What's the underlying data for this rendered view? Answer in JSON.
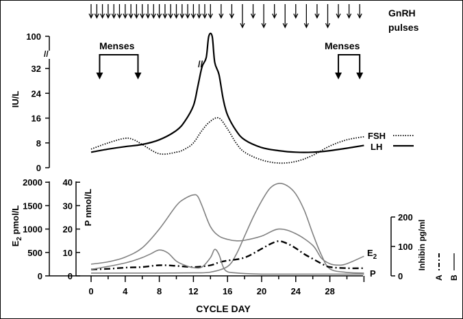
{
  "colors": {
    "ink": "#000000",
    "e2_line": "#808080",
    "p_line": "#808080",
    "inhibin_b": "#808080"
  },
  "chart_data": [
    {
      "type": "line",
      "title": "GnRH pulses",
      "gnrh_label_1": "GnRH",
      "gnrh_label_2": "pulses",
      "gnrh_pulse_days": [
        0,
        0.67,
        1.33,
        2,
        2.67,
        3.33,
        4,
        4.67,
        5.33,
        6,
        6.67,
        7.33,
        8,
        8.67,
        9.33,
        10,
        10.67,
        11.33,
        12,
        12.67,
        13.33,
        14,
        15.25,
        16.5,
        17.75,
        19,
        20.25,
        21.5,
        22.75,
        24,
        25.25,
        26.5,
        27.75,
        29,
        30.25,
        31.5
      ],
      "gnrh_long_days": [
        17.75,
        20.25,
        22.75,
        25.25,
        27.75
      ],
      "xlim": [
        0,
        32
      ],
      "ylabel": "IU/L",
      "ytick_labels": [
        "0",
        "8",
        "16",
        "24",
        "32",
        "100"
      ],
      "y_break": "//",
      "menses_label": "Menses",
      "menses_1": [
        1,
        5.5
      ],
      "menses_2": [
        29,
        31.5
      ],
      "series": [
        {
          "name": "LH",
          "label": "LH",
          "style": "solid",
          "x": [
            0,
            2,
            4,
            6,
            8,
            10,
            11,
            12,
            12.5,
            13,
            13.5,
            13.8,
            14.2,
            14.5,
            15,
            15.5,
            16,
            17,
            18,
            20,
            22,
            24,
            26,
            28,
            30,
            32
          ],
          "y": [
            5,
            6,
            6.8,
            7.5,
            9,
            12,
            15,
            20,
            26,
            35,
            55,
            100,
            100,
            45,
            30,
            22,
            17,
            12,
            9,
            6.5,
            5.5,
            5,
            5,
            5.5,
            6.3,
            7.2
          ]
        },
        {
          "name": "FSH",
          "label": "FSH",
          "style": "dotted",
          "x": [
            0,
            2,
            4,
            5,
            6,
            8,
            10,
            11,
            12,
            13,
            14,
            15,
            16,
            17,
            18,
            20,
            22,
            24,
            26,
            28,
            30,
            32
          ],
          "y": [
            6,
            8,
            9.5,
            9,
            7.5,
            4.5,
            5,
            6,
            8,
            12,
            15,
            16,
            12.5,
            8,
            5,
            2.5,
            1.5,
            2,
            4,
            7,
            9,
            10
          ]
        }
      ]
    },
    {
      "type": "line",
      "xlabel": "CYCLE DAY",
      "xlim": [
        0,
        32
      ],
      "xtick_labels": [
        "0",
        "4",
        "8",
        "12",
        "16",
        "20",
        "24",
        "28"
      ],
      "e2_label": "E",
      "e2_sub": "2",
      "e2_axis_label": "E",
      "e2_axis_sub": "2",
      "e2_axis_unit": "pmol/L",
      "e2_ticks": [
        "0",
        "500",
        "1000",
        "1500",
        "2000"
      ],
      "p_label": "P",
      "p_axis_label": "P nmol/L",
      "p_ticks": [
        "0",
        "10",
        "20",
        "30",
        "40"
      ],
      "inhibin_axis_label": "Inhibin pg/ml",
      "inhibin_ticks": [
        "0",
        "100",
        "200"
      ],
      "inhibin_a": "A",
      "inhibin_b": "B",
      "series": [
        {
          "name": "E2",
          "axis": "e2",
          "style": "solid-grey",
          "x": [
            0,
            2,
            4,
            6,
            8,
            10,
            11,
            12,
            12.5,
            13,
            14,
            15,
            16,
            17,
            18,
            20,
            22,
            24,
            26,
            27,
            28,
            29,
            30,
            32
          ],
          "y": [
            250,
            300,
            400,
            600,
            1000,
            1500,
            1650,
            1730,
            1700,
            1500,
            1050,
            850,
            780,
            750,
            760,
            850,
            1000,
            900,
            650,
            380,
            260,
            230,
            260,
            420
          ]
        },
        {
          "name": "P",
          "axis": "p",
          "style": "solid-grey",
          "x": [
            0,
            4,
            8,
            12,
            14,
            16,
            17,
            18,
            19,
            20,
            21,
            22,
            23,
            24,
            25,
            26,
            27,
            28,
            30,
            32
          ],
          "y": [
            1.2,
            1.2,
            1.2,
            1.3,
            1.6,
            4,
            9,
            17,
            25,
            32,
            37.5,
            39.5,
            38.5,
            35,
            28,
            18,
            9,
            3,
            1.5,
            1.2
          ]
        },
        {
          "name": "Inhibin A",
          "axis": "inhibin",
          "style": "dashdot",
          "x": [
            0,
            2,
            4,
            6,
            8,
            10,
            12,
            14,
            15,
            16,
            18,
            20,
            21,
            22,
            23,
            24,
            25,
            26,
            27,
            28,
            30,
            32
          ],
          "y": [
            22,
            24,
            28,
            30,
            36,
            34,
            30,
            36,
            46,
            52,
            62,
            92,
            108,
            118,
            110,
            94,
            74,
            58,
            42,
            30,
            26,
            26
          ]
        },
        {
          "name": "Inhibin B",
          "axis": "inhibin",
          "style": "solid-grey",
          "x": [
            0,
            2,
            4,
            5,
            6,
            7,
            8,
            9,
            10,
            11,
            12,
            13,
            14,
            14.5,
            15,
            15.5,
            16,
            17,
            18,
            20,
            24,
            28,
            32
          ],
          "y": [
            22,
            32,
            44,
            52,
            62,
            75,
            88,
            78,
            50,
            36,
            28,
            30,
            62,
            90,
            72,
            30,
            14,
            10,
            8,
            6,
            6,
            6,
            6
          ]
        }
      ]
    }
  ]
}
